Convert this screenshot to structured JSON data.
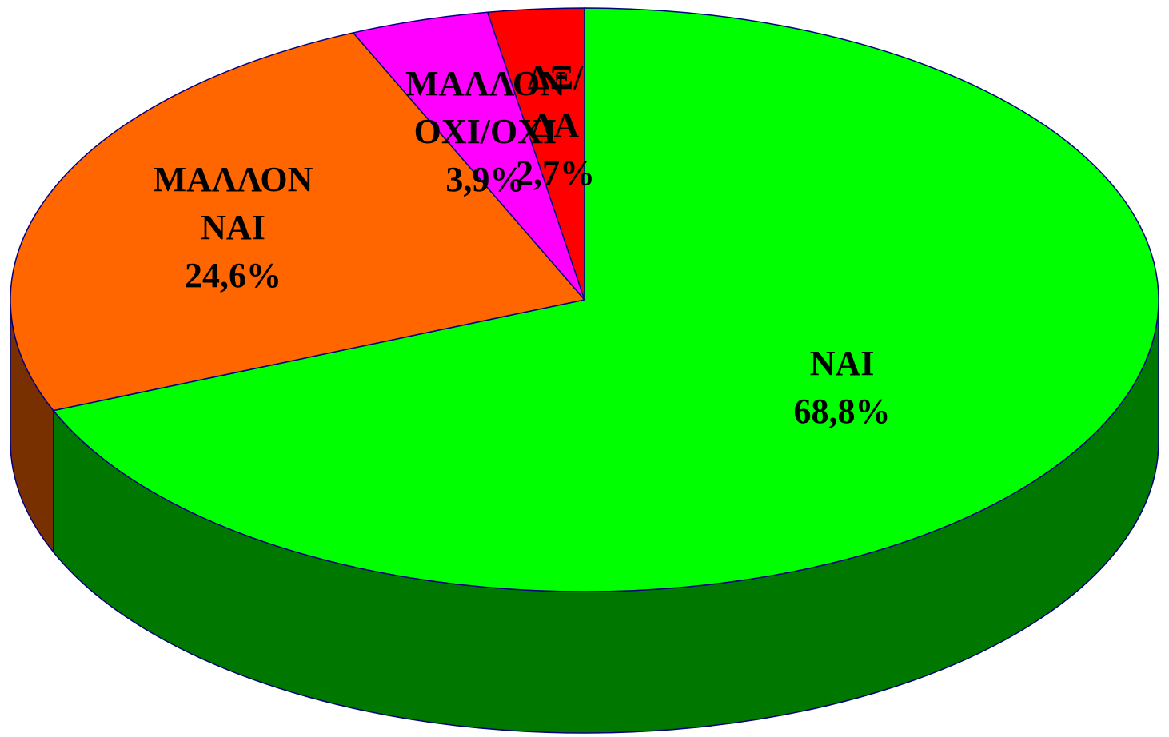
{
  "chart_data": {
    "type": "pie",
    "categories": [
      "ΝΑΙ",
      "ΜΑΛΛΟΝ ΝΑΙ",
      "ΜΑΛΛΟΝ ΟΧΙ/ΟΧΙ",
      "ΔΞ/ΔΑ"
    ],
    "values": [
      68.8,
      24.6,
      3.9,
      2.7
    ],
    "value_labels": [
      "68,8%",
      "24,6%",
      "3,9%",
      "2,7%"
    ],
    "colors": [
      "#00ff00",
      "#ff6600",
      "#ff00ff",
      "#ff0000"
    ]
  }
}
